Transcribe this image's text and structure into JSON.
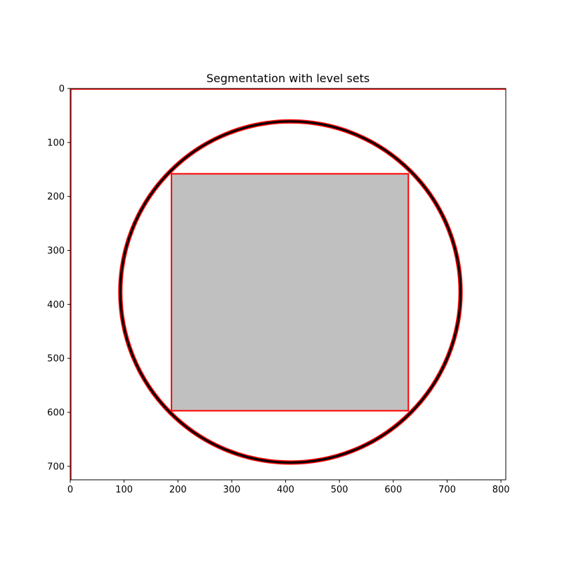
{
  "chart_data": {
    "type": "image",
    "title": "Segmentation with level sets",
    "xlabel": "",
    "ylabel": "",
    "xlim": [
      0,
      809
    ],
    "ylim": [
      725,
      0
    ],
    "xticks": [
      0,
      100,
      200,
      300,
      400,
      500,
      600,
      700,
      800
    ],
    "yticks": [
      0,
      100,
      200,
      300,
      400,
      500,
      600,
      700
    ],
    "grid": false,
    "image": {
      "background_color": "#ffffff",
      "circle": {
        "cx": 409,
        "cy": 377,
        "r": 316,
        "stroke_color": "#000000"
      },
      "square": {
        "x0": 188,
        "y0": 158,
        "x1": 628,
        "y1": 597,
        "fill_color": "#c0c0c0"
      }
    },
    "contours": {
      "color": "#ff0000",
      "circle": {
        "cx": 409,
        "cy": 377,
        "r_inner": 313,
        "r_outer": 319
      },
      "square": {
        "x0": 188,
        "y0": 158,
        "x1": 628,
        "y1": 597
      },
      "border": {
        "x0": 1,
        "y0": 1,
        "x1": 809,
        "y1": 725
      }
    }
  }
}
